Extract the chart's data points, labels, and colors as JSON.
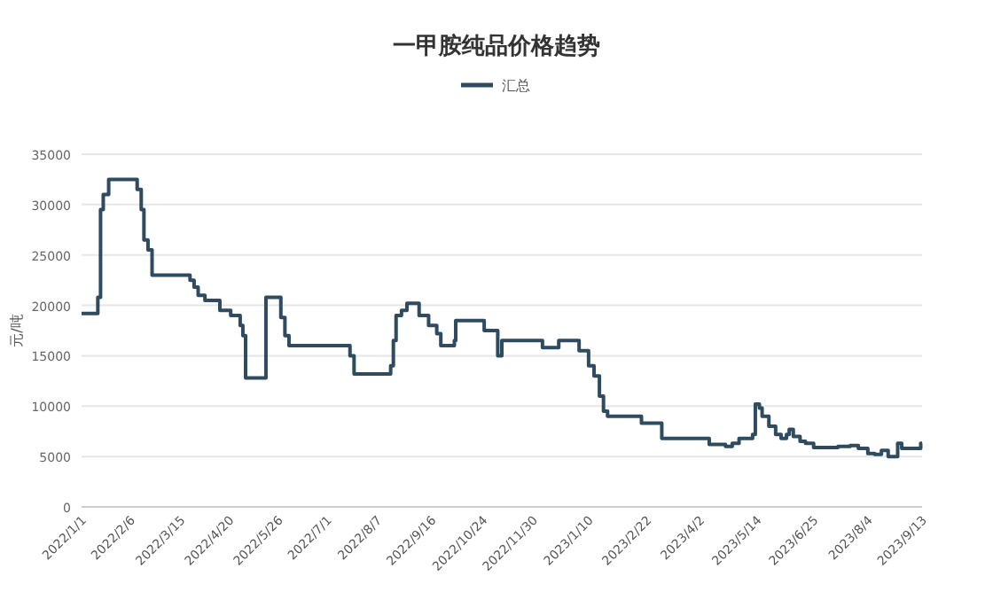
{
  "chart_data": {
    "type": "step",
    "title": "一甲胺纯品价格趋势",
    "ylabel": "元/吨",
    "legend": "top",
    "grid": "y",
    "x": [
      "2022-01-01",
      "2022-01-13",
      "2022-01-15",
      "2022-01-17",
      "2022-01-21",
      "2022-02-11",
      "2022-02-14",
      "2022-02-16",
      "2022-02-19",
      "2022-02-22",
      "2022-03-22",
      "2022-03-25",
      "2022-03-28",
      "2022-04-02",
      "2022-04-13",
      "2022-04-21",
      "2022-04-28",
      "2022-04-30",
      "2022-05-02",
      "2022-05-17",
      "2022-05-28",
      "2022-05-31",
      "2022-06-03",
      "2022-07-18",
      "2022-07-21",
      "2022-08-17",
      "2022-08-19",
      "2022-08-21",
      "2022-08-25",
      "2022-08-29",
      "2022-09-07",
      "2022-09-14",
      "2022-09-20",
      "2022-09-23",
      "2022-10-03",
      "2022-10-04",
      "2022-10-25",
      "2022-11-04",
      "2022-11-07",
      "2022-12-07",
      "2022-12-19",
      "2023-01-03",
      "2023-01-10",
      "2023-01-14",
      "2023-01-18",
      "2023-01-21",
      "2023-01-24",
      "2023-02-18",
      "2023-03-05",
      "2023-04-09",
      "2023-04-21",
      "2023-04-26",
      "2023-05-01",
      "2023-05-11",
      "2023-05-13",
      "2023-05-16",
      "2023-05-18",
      "2023-05-23",
      "2023-05-28",
      "2023-06-01",
      "2023-06-05",
      "2023-06-07",
      "2023-06-10",
      "2023-06-15",
      "2023-06-19",
      "2023-06-25",
      "2023-07-13",
      "2023-07-22",
      "2023-07-28",
      "2023-08-04",
      "2023-08-09",
      "2023-08-14",
      "2023-08-19",
      "2023-08-26",
      "2023-08-29",
      "2023-09-12",
      "2023-09-13"
    ],
    "series": [
      {
        "name": "汇总",
        "color": "#2f4b5f",
        "values": [
          19200,
          20800,
          29500,
          31000,
          32500,
          31500,
          29500,
          26500,
          25500,
          23000,
          22500,
          21800,
          21000,
          20500,
          19500,
          19000,
          18000,
          17000,
          12800,
          20800,
          18800,
          17000,
          16000,
          15000,
          13200,
          14000,
          16500,
          19000,
          19500,
          20200,
          19000,
          18000,
          17200,
          16000,
          16500,
          18500,
          17500,
          15000,
          16500,
          15800,
          16500,
          15500,
          14000,
          13000,
          11000,
          9500,
          9000,
          8300,
          6800,
          6200,
          6000,
          6300,
          6800,
          7200,
          10200,
          9800,
          9000,
          8000,
          7200,
          6800,
          7200,
          7700,
          7000,
          6500,
          6300,
          5900,
          6000,
          6100,
          5800,
          5300,
          5200,
          5600,
          5000,
          6300,
          5800,
          6300,
          6300
        ]
      }
    ],
    "xlim": [
      "2022-01-01",
      "2023-09-13"
    ],
    "xticks": [
      {
        "value": "2022-01-01",
        "label": "2022/1/1"
      },
      {
        "value": "2022-02-06",
        "label": "2022/2/6"
      },
      {
        "value": "2022-03-15",
        "label": "2022/3/15"
      },
      {
        "value": "2022-04-20",
        "label": "2022/4/20"
      },
      {
        "value": "2022-05-26",
        "label": "2022/5/26"
      },
      {
        "value": "2022-07-01",
        "label": "2022/7/1"
      },
      {
        "value": "2022-08-07",
        "label": "2022/8/7"
      },
      {
        "value": "2022-09-16",
        "label": "2022/9/16"
      },
      {
        "value": "2022-10-24",
        "label": "2022/10/24"
      },
      {
        "value": "2022-11-30",
        "label": "2022/11/30"
      },
      {
        "value": "2023-01-10",
        "label": "2023/1/10"
      },
      {
        "value": "2023-02-22",
        "label": "2023/2/22"
      },
      {
        "value": "2023-04-02",
        "label": "2023/4/2"
      },
      {
        "value": "2023-05-14",
        "label": "2023/5/14"
      },
      {
        "value": "2023-06-25",
        "label": "2023/6/25"
      },
      {
        "value": "2023-08-04",
        "label": "2023/8/4"
      },
      {
        "value": "2023-09-13",
        "label": "2023/9/13"
      }
    ],
    "ylim": [
      0,
      35000
    ],
    "yticks": [
      0,
      5000,
      10000,
      15000,
      20000,
      25000,
      30000,
      35000
    ]
  }
}
